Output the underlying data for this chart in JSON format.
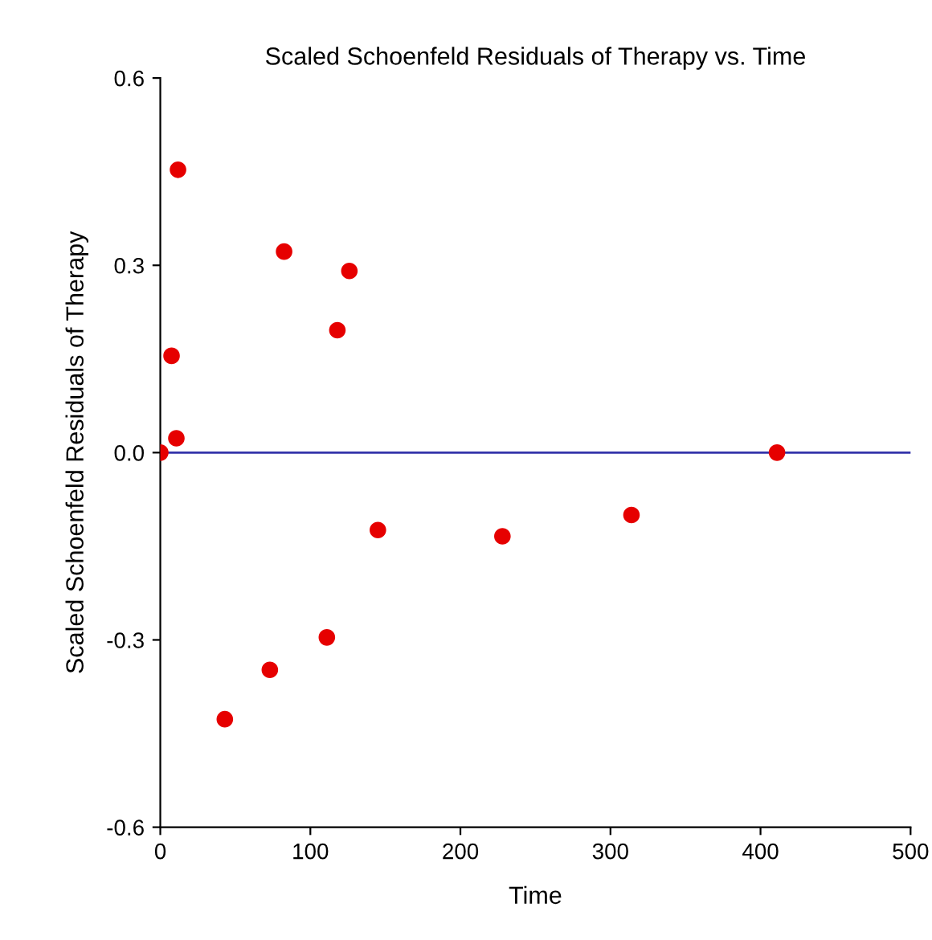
{
  "chart_data": {
    "type": "scatter",
    "title": "Scaled Schoenfeld Residuals of Therapy vs. Time",
    "xlabel": "Time",
    "ylabel": "Scaled Schoenfeld Residuals of Therapy",
    "x": [
      0,
      7.5,
      10.7,
      11.8,
      43,
      73,
      82.5,
      111,
      118,
      126,
      145,
      228,
      314,
      411
    ],
    "series": [
      {
        "color": "#e60000",
        "values": [
          0,
          0.155,
          0.023,
          0.453,
          -0.427,
          -0.348,
          0.322,
          -0.296,
          0.196,
          0.291,
          -0.124,
          -0.134,
          -0.1,
          0
        ]
      }
    ],
    "xlim": [
      0,
      500
    ],
    "xticks": [
      0,
      100,
      200,
      300,
      400,
      500
    ],
    "ylim": [
      -0.6,
      0.6
    ],
    "yticks": [
      {
        "value": -0.6,
        "label": "-0.6"
      },
      {
        "value": -0.3,
        "label": "-0.3"
      },
      {
        "value": 0,
        "label": "0.0"
      },
      {
        "value": 0.3,
        "label": "0.3"
      },
      {
        "value": 0.6,
        "label": "0.6"
      }
    ],
    "ref_lines": [
      {
        "axis": "y",
        "value": 0,
        "color": "#3333aa"
      }
    ],
    "grid": false,
    "legend": false,
    "marker": "circle"
  }
}
